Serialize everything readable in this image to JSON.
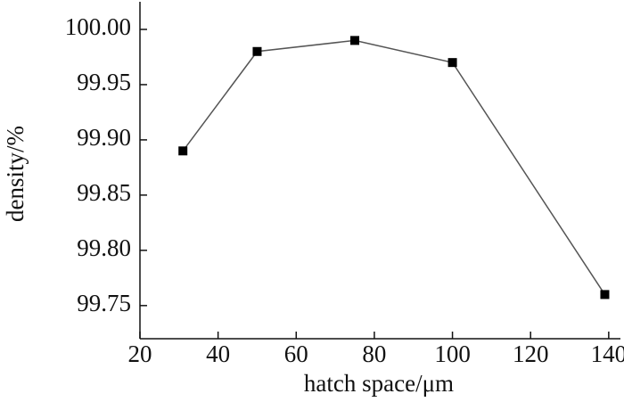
{
  "chart_data": {
    "type": "line",
    "x_label": "hatch space/μm",
    "y_label": "density/%",
    "x": [
      31,
      50,
      75,
      100,
      139
    ],
    "series": [
      {
        "values": [
          99.89,
          99.98,
          99.99,
          99.97,
          99.76
        ],
        "color": "#555555"
      }
    ],
    "xlim": [
      20,
      143
    ],
    "xticks": [
      20,
      40,
      60,
      80,
      100,
      120,
      140
    ],
    "ylim": [
      99.72,
      100.025
    ],
    "yticks": [
      99.75,
      {
        "value": 99.8,
        "label": "99.80"
      },
      99.85,
      {
        "value": 99.9,
        "label": "99.90"
      },
      99.95,
      {
        "value": 100,
        "label": "100.00"
      }
    ]
  }
}
